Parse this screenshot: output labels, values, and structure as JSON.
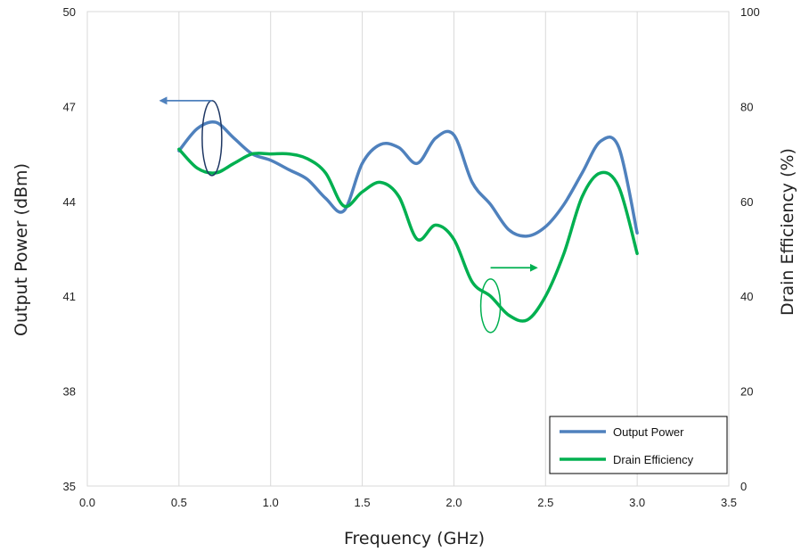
{
  "chart_data": {
    "type": "line",
    "xlabel": "Frequency (GHz)",
    "ylabel_left": "Output Power (dBm)",
    "ylabel_right": "Drain Efficiency (%)",
    "xlim": [
      0,
      3.5
    ],
    "ylim_left": [
      35,
      50
    ],
    "ylim_right": [
      0,
      100
    ],
    "x_ticks": [
      "0.0",
      "0.5",
      "1.0",
      "1.5",
      "2.0",
      "2.5",
      "3.0",
      "3.5"
    ],
    "y_left_ticks": [
      "35",
      "38",
      "41",
      "44",
      "47",
      "50"
    ],
    "y_right_ticks": [
      "0",
      "20",
      "40",
      "60",
      "80",
      "100"
    ],
    "grid": "vertical",
    "legend_placement": "bottom-right",
    "series": [
      {
        "name": "Output Power",
        "axis": "left",
        "color": "#4f81bd",
        "x": [
          0.5,
          0.6,
          0.7,
          0.8,
          0.9,
          1.0,
          1.1,
          1.2,
          1.3,
          1.4,
          1.5,
          1.6,
          1.7,
          1.8,
          1.9,
          2.0,
          2.1,
          2.2,
          2.3,
          2.4,
          2.5,
          2.6,
          2.7,
          2.8,
          2.9,
          3.0
        ],
        "y": [
          45.6,
          46.3,
          46.5,
          46.0,
          45.5,
          45.3,
          45.0,
          44.7,
          44.1,
          43.7,
          45.2,
          45.8,
          45.7,
          45.2,
          46.0,
          46.1,
          44.6,
          43.9,
          43.1,
          42.9,
          43.2,
          43.9,
          44.9,
          45.9,
          45.7,
          43.0
        ]
      },
      {
        "name": "Drain Efficiency",
        "axis": "right",
        "color": "#00b050",
        "x": [
          0.5,
          0.6,
          0.7,
          0.8,
          0.9,
          1.0,
          1.1,
          1.2,
          1.3,
          1.4,
          1.5,
          1.6,
          1.7,
          1.8,
          1.9,
          2.0,
          2.1,
          2.2,
          2.3,
          2.4,
          2.5,
          2.6,
          2.7,
          2.8,
          2.9,
          3.0
        ],
        "y": [
          71,
          67,
          66,
          68,
          70,
          70,
          70,
          69,
          66,
          59,
          62,
          64,
          61,
          52,
          55,
          52,
          43,
          40,
          36,
          35,
          40,
          49,
          61,
          66,
          63,
          49
        ]
      }
    ],
    "annotations": [
      {
        "series": "Output Power",
        "target_axis": "left",
        "at": [
          0.68,
          46.0
        ],
        "arrow_to_x": 0.4
      },
      {
        "series": "Drain Efficiency",
        "target_axis": "right",
        "at": [
          2.2,
          38.0
        ],
        "arrow_to_x": 2.45,
        "arrow_at_y": 46
      }
    ]
  }
}
